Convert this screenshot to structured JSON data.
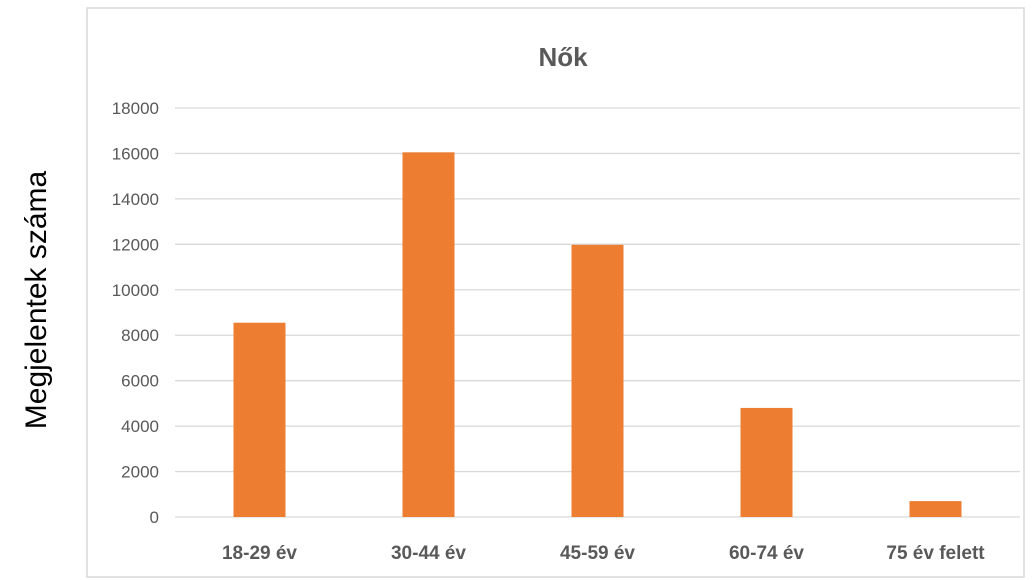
{
  "chart_data": {
    "type": "bar",
    "title": "Nők",
    "ylabel": "Megjelentek száma",
    "xlabel": "",
    "categories": [
      "18-29 év",
      "30-44 év",
      "45-59 év",
      "60-74 év",
      "75 év felett"
    ],
    "series": [
      {
        "values": [
          8550,
          16050,
          11980,
          4800,
          700
        ]
      }
    ],
    "ylim": [
      0,
      18000
    ],
    "yticks": [
      0,
      2000,
      4000,
      6000,
      8000,
      10000,
      12000,
      14000,
      16000,
      18000
    ],
    "grid": true,
    "legend": "none"
  },
  "colors": {
    "bar": "#ED7D31",
    "grid": "#D9D9D9",
    "border": "#D9D9D9",
    "tick_text": "#595959",
    "title_text": "#595959"
  }
}
